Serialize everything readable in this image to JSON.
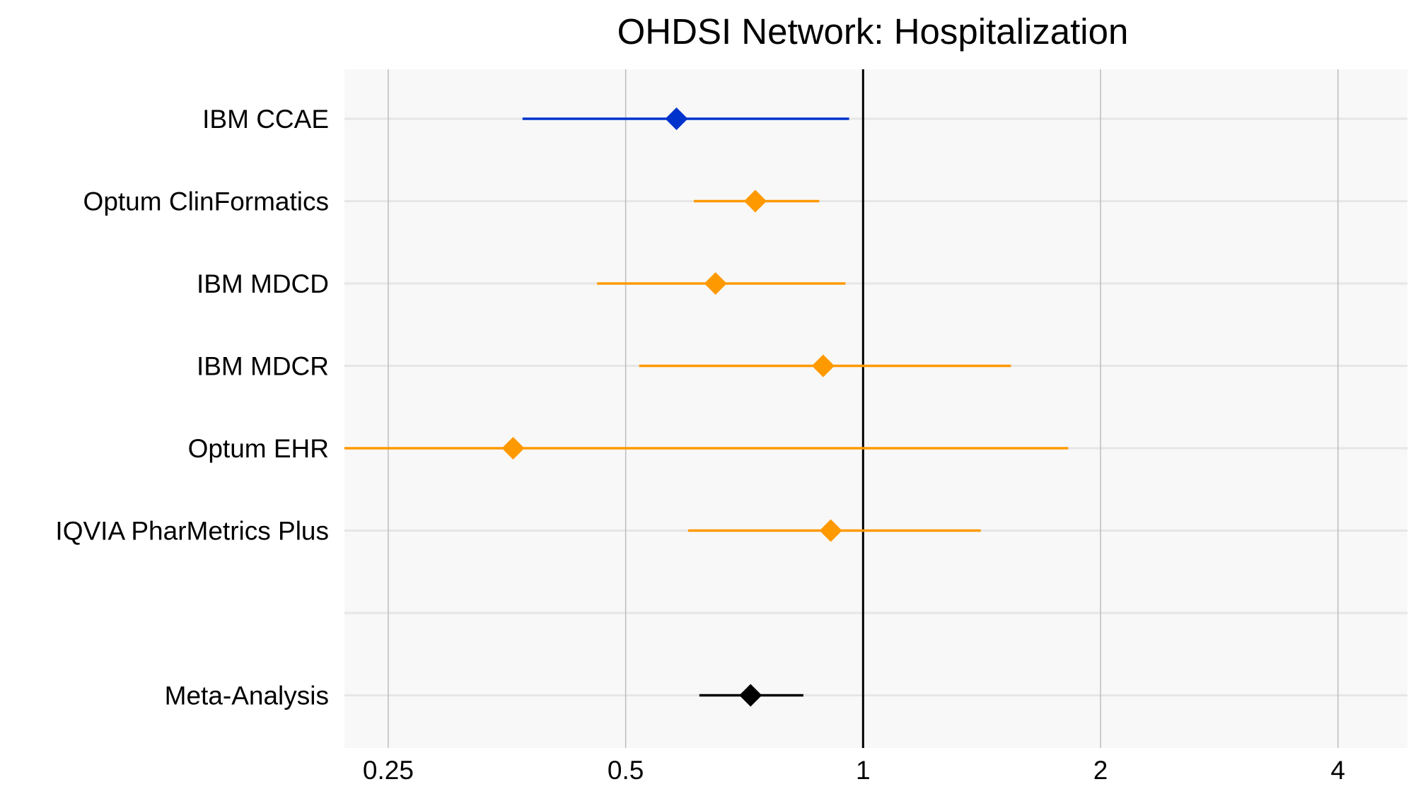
{
  "chart_data": {
    "type": "forest",
    "title": "OHDSI Network: Hospitalization",
    "xlabel": "",
    "ylabel": "",
    "x_scale": "log",
    "xlim": [
      0.22,
      4.9
    ],
    "x_ticks": [
      0.25,
      0.5,
      1,
      2,
      4
    ],
    "x_tick_labels": [
      "0.25",
      "0.5",
      "1",
      "2",
      "4"
    ],
    "reference_line": 1,
    "grid": true,
    "rows": [
      {
        "label": "IBM CCAE",
        "estimate": 0.58,
        "lower": 0.37,
        "upper": 0.96,
        "color": "#0033cc"
      },
      {
        "label": "Optum ClinFormatics",
        "estimate": 0.73,
        "lower": 0.61,
        "upper": 0.88,
        "color": "#ff9900"
      },
      {
        "label": "IBM MDCD",
        "estimate": 0.65,
        "lower": 0.46,
        "upper": 0.95,
        "color": "#ff9900"
      },
      {
        "label": "IBM MDCR",
        "estimate": 0.89,
        "lower": 0.52,
        "upper": 1.54,
        "color": "#ff9900"
      },
      {
        "label": "Optum EHR",
        "estimate": 0.36,
        "lower": 0.22,
        "upper": 1.82,
        "color": "#ff9900"
      },
      {
        "label": "IQVIA PharMetrics Plus",
        "estimate": 0.91,
        "lower": 0.6,
        "upper": 1.41,
        "color": "#ff9900"
      },
      {
        "label": "",
        "estimate": null,
        "lower": null,
        "upper": null,
        "color": ""
      },
      {
        "label": "Meta-Analysis",
        "estimate": 0.72,
        "lower": 0.62,
        "upper": 0.84,
        "color": "#000000"
      }
    ],
    "colors": {
      "panel_background": "#f8f8f8",
      "grid_major": "#bdbdbd",
      "grid_row": "#e6e6e6",
      "reference_line": "#000000"
    }
  }
}
